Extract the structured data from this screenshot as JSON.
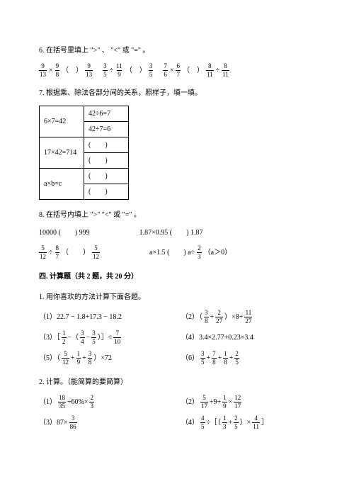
{
  "q6": {
    "text": "6. 在括号里填上 \">\" 、 \"<\" 或 \"=\" 。",
    "items": [
      {
        "a_n": "9",
        "a_d": "13",
        "op": "×",
        "b_n": "9",
        "b_d": "8",
        "c_n": "9",
        "c_d": "13"
      },
      {
        "a_n": "3",
        "a_d": "5",
        "op": "÷",
        "b_n": "11",
        "b_d": "9",
        "c_n": "3",
        "c_d": "5"
      },
      {
        "a_n": "7",
        "a_d": "6",
        "op": "×",
        "b_n": "6",
        "b_d": "7",
        "c_n": "8",
        "c_d": "11",
        "pre": "",
        "post": "÷",
        "e_n": "8",
        "e_d": "11"
      }
    ]
  },
  "q7": {
    "text": "7. 根据乘、除法各部分间的关系，照样子，填一填。",
    "table": [
      [
        "6×7=42",
        "42÷6=7"
      ],
      [
        "",
        "42÷7=6"
      ],
      [
        "17×42=714",
        "(　　)"
      ],
      [
        "",
        "(　　)"
      ],
      [
        "a×b=c",
        "(　　)"
      ],
      [
        "",
        "(　　)"
      ]
    ]
  },
  "q8": {
    "text": "8. 在括号内填上 \">\" \"<\" 或 \"=\" 。",
    "row1": {
      "l": "10000 (　　) 999",
      "r": "1.87×0.95 (　　) 1.87"
    },
    "row2": {
      "l_a_n": "5",
      "l_a_d": "12",
      "l_op": "÷",
      "l_b_n": "8",
      "l_b_d": "7",
      "l_c_n": "5",
      "l_c_d": "12",
      "r_a": "a×1.5 (　　) a÷",
      "r_n": "2",
      "r_d": "3",
      "r_tail": "（a＞0）"
    }
  },
  "section4": {
    "title": "四. 计算题（共 2 题，共 20 分）",
    "q1": "1. 用你喜欢的方法计算下面各题。",
    "items": [
      {
        "left": "（1）22.7 − 1.8+17.3 − 18.2",
        "right": [
          "（2）（",
          "f3_8",
          "+",
          "f2_27",
          "）×8+",
          "f11_27"
        ]
      },
      {
        "left": [
          "（3）［",
          "f1_2",
          "−（",
          "f3_4",
          "−",
          "f3_5",
          "）］÷",
          "f7_10"
        ],
        "right": "（4）3.4×2.77+0.23×3.4"
      },
      {
        "left": [
          "（5）（",
          "f5_12",
          "+",
          "f1_9",
          "+",
          "f3_8",
          "）×72"
        ],
        "right": [
          "（6）",
          "f3_5",
          "+",
          "f7_8",
          "+",
          "f1_8",
          "+",
          "f2_5"
        ]
      }
    ],
    "q2": "2. 计算。（能简算的要简算）",
    "items2": [
      {
        "left": [
          "（1）",
          "f18_35",
          "÷60%×",
          "f2_3"
        ],
        "right": [
          "（2）",
          "f5_17",
          "÷9+",
          "f1_9",
          "×",
          "f12_17"
        ]
      },
      {
        "left": [
          "（3）87×",
          "f3_86"
        ],
        "right": [
          "（4）",
          "f4_5",
          "÷［（",
          "f1_3",
          "+",
          "f2_5",
          "）×",
          "f4_11",
          "］"
        ]
      }
    ]
  },
  "fractions": {
    "f3_8": {
      "n": "3",
      "d": "8"
    },
    "f2_27": {
      "n": "2",
      "d": "27"
    },
    "f11_27": {
      "n": "11",
      "d": "27"
    },
    "f1_2": {
      "n": "1",
      "d": "2"
    },
    "f3_4": {
      "n": "3",
      "d": "4"
    },
    "f3_5": {
      "n": "3",
      "d": "5"
    },
    "f7_10": {
      "n": "7",
      "d": "10"
    },
    "f5_12": {
      "n": "5",
      "d": "12"
    },
    "f1_9": {
      "n": "1",
      "d": "9"
    },
    "f7_8": {
      "n": "7",
      "d": "8"
    },
    "f1_8": {
      "n": "1",
      "d": "8"
    },
    "f2_5": {
      "n": "2",
      "d": "5"
    },
    "f18_35": {
      "n": "18",
      "d": "35"
    },
    "f2_3": {
      "n": "2",
      "d": "3"
    },
    "f5_17": {
      "n": "5",
      "d": "17"
    },
    "f12_17": {
      "n": "12",
      "d": "17"
    },
    "f3_86": {
      "n": "3",
      "d": "86"
    },
    "f4_5": {
      "n": "4",
      "d": "5"
    },
    "f1_3": {
      "n": "1",
      "d": "3"
    },
    "f4_11": {
      "n": "4",
      "d": "11"
    }
  }
}
